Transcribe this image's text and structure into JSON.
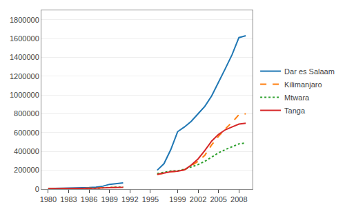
{
  "chart_data": {
    "type": "line",
    "x": [
      1980,
      1981,
      1982,
      1983,
      1984,
      1985,
      1986,
      1987,
      1988,
      1989,
      1990,
      1991,
      1992,
      1993,
      1994,
      1995,
      1996,
      1997,
      1998,
      1999,
      2000,
      2001,
      2002,
      2003,
      2004,
      2005,
      2006,
      2007,
      2008,
      2009
    ],
    "series": [
      {
        "name": "Dar es Salaam",
        "line_style": "solid",
        "values": [
          5000,
          6000,
          7000,
          8000,
          10000,
          13000,
          16000,
          20000,
          30000,
          50000,
          60000,
          65000,
          null,
          null,
          null,
          null,
          200000,
          270000,
          420000,
          610000,
          660000,
          720000,
          800000,
          880000,
          990000,
          1130000,
          1280000,
          1430000,
          1610000,
          1630000
        ]
      },
      {
        "name": "Kilimanjaro",
        "line_style": "dashed",
        "values": [
          3000,
          3500,
          4000,
          4500,
          5500,
          7000,
          8500,
          10000,
          14000,
          18000,
          20000,
          21000,
          null,
          null,
          null,
          null,
          155000,
          170000,
          185000,
          190000,
          205000,
          245000,
          295000,
          360000,
          470000,
          560000,
          640000,
          710000,
          790000,
          800000
        ]
      },
      {
        "name": "Mtwara",
        "line_style": "dotted",
        "values": [
          2000,
          2500,
          3000,
          3500,
          4500,
          5500,
          7000,
          9000,
          13000,
          18000,
          20000,
          21000,
          null,
          null,
          null,
          null,
          165000,
          178000,
          192000,
          195000,
          210000,
          235000,
          260000,
          295000,
          340000,
          385000,
          420000,
          450000,
          480000,
          490000
        ]
      },
      {
        "name": "Tanga",
        "line_style": "solid",
        "values": [
          3000,
          3500,
          4000,
          4500,
          5500,
          7000,
          8000,
          9500,
          13000,
          16000,
          18000,
          19000,
          null,
          null,
          null,
          null,
          155000,
          170000,
          185000,
          190000,
          205000,
          255000,
          320000,
          410000,
          510000,
          580000,
          630000,
          660000,
          690000,
          700000
        ]
      }
    ],
    "xlim": [
      1979,
      2010
    ],
    "xticks": [
      1980,
      1983,
      1986,
      1989,
      1992,
      1995,
      1999,
      2002,
      2005,
      2008
    ],
    "ylim": [
      0,
      1900000
    ],
    "yticks": [
      0,
      200000,
      400000,
      600000,
      800000,
      1000000,
      1200000,
      1400000,
      1600000,
      1800000
    ],
    "grid": "y",
    "legend": "right"
  }
}
